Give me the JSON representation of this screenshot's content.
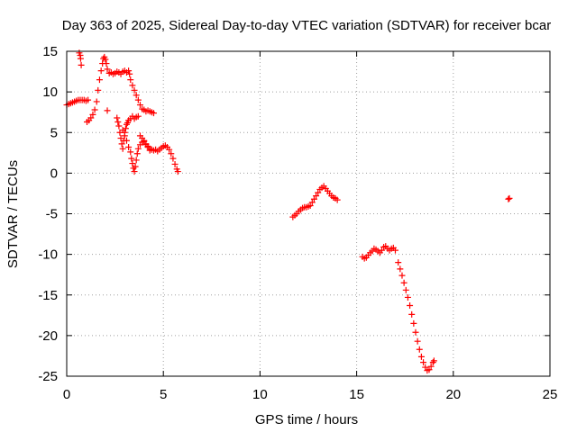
{
  "chart_data": {
    "type": "scatter",
    "title": "Day 363 of 2025, Sidereal Day-to-day VTEC variation (SDTVAR) for receiver bcar",
    "xlabel": "GPS time / hours",
    "ylabel": "SDTVAR / TECUs",
    "xlim": [
      0,
      25
    ],
    "ylim": [
      -25,
      15
    ],
    "x_ticks": [
      0,
      5,
      10,
      15,
      20,
      25
    ],
    "y_ticks": [
      15,
      10,
      5,
      0,
      -5,
      -10,
      -15,
      -20,
      -25
    ],
    "grid": true,
    "marker": "+",
    "color": "#ff0000",
    "series": [
      {
        "name": "SDTVAR",
        "points": [
          [
            0.0,
            8.4
          ],
          [
            0.1,
            8.5
          ],
          [
            0.2,
            8.6
          ],
          [
            0.3,
            8.7
          ],
          [
            0.4,
            8.8
          ],
          [
            0.5,
            8.9
          ],
          [
            0.6,
            9.0
          ],
          [
            0.7,
            9.0
          ],
          [
            0.8,
            9.0
          ],
          [
            0.9,
            9.0
          ],
          [
            1.0,
            8.9
          ],
          [
            1.1,
            9.0
          ],
          [
            0.65,
            14.8
          ],
          [
            0.7,
            14.5
          ],
          [
            0.72,
            14.1
          ],
          [
            0.75,
            13.3
          ],
          [
            1.05,
            6.3
          ],
          [
            1.15,
            6.5
          ],
          [
            1.25,
            6.8
          ],
          [
            1.35,
            7.2
          ],
          [
            1.45,
            7.8
          ],
          [
            1.55,
            8.8
          ],
          [
            1.62,
            10.2
          ],
          [
            1.7,
            11.5
          ],
          [
            1.78,
            12.6
          ],
          [
            1.85,
            13.5
          ],
          [
            1.9,
            14.1
          ],
          [
            1.95,
            14.3
          ],
          [
            2.0,
            14.0
          ],
          [
            2.05,
            13.5
          ],
          [
            2.1,
            12.8
          ],
          [
            2.2,
            12.3
          ],
          [
            2.3,
            12.4
          ],
          [
            2.4,
            12.2
          ],
          [
            2.5,
            12.3
          ],
          [
            2.6,
            12.5
          ],
          [
            2.7,
            12.4
          ],
          [
            2.8,
            12.2
          ],
          [
            2.9,
            12.5
          ],
          [
            3.0,
            12.6
          ],
          [
            3.1,
            12.4
          ],
          [
            3.2,
            12.6
          ],
          [
            3.25,
            12.2
          ],
          [
            3.3,
            11.5
          ],
          [
            3.4,
            10.8
          ],
          [
            3.5,
            10.2
          ],
          [
            3.6,
            9.6
          ],
          [
            3.7,
            9.0
          ],
          [
            3.8,
            8.4
          ],
          [
            3.9,
            7.9
          ],
          [
            4.0,
            7.8
          ],
          [
            4.1,
            7.6
          ],
          [
            4.2,
            7.7
          ],
          [
            4.3,
            7.6
          ],
          [
            4.4,
            7.5
          ],
          [
            4.5,
            7.4
          ],
          [
            2.1,
            7.7
          ],
          [
            2.6,
            6.8
          ],
          [
            2.65,
            6.3
          ],
          [
            2.7,
            5.8
          ],
          [
            2.75,
            5.0
          ],
          [
            2.8,
            4.3
          ],
          [
            2.85,
            3.6
          ],
          [
            2.9,
            3.0
          ],
          [
            2.95,
            4.0
          ],
          [
            3.0,
            5.0
          ],
          [
            3.05,
            5.5
          ],
          [
            3.1,
            6.0
          ],
          [
            3.15,
            6.2
          ],
          [
            3.2,
            6.5
          ],
          [
            3.3,
            6.7
          ],
          [
            3.4,
            7.0
          ],
          [
            3.5,
            6.7
          ],
          [
            3.6,
            6.9
          ],
          [
            3.7,
            7.0
          ],
          [
            2.9,
            5.3
          ],
          [
            3.0,
            4.6
          ],
          [
            3.1,
            4.0
          ],
          [
            3.2,
            3.2
          ],
          [
            3.3,
            2.6
          ],
          [
            3.35,
            1.8
          ],
          [
            3.4,
            1.2
          ],
          [
            3.45,
            0.6
          ],
          [
            3.5,
            0.2
          ],
          [
            3.55,
            0.8
          ],
          [
            3.6,
            1.6
          ],
          [
            3.65,
            2.4
          ],
          [
            3.7,
            3.0
          ],
          [
            3.8,
            3.5
          ],
          [
            3.9,
            3.8
          ],
          [
            4.0,
            4.0
          ],
          [
            4.1,
            3.6
          ],
          [
            4.2,
            3.3
          ],
          [
            4.3,
            3.0
          ],
          [
            4.4,
            2.9
          ],
          [
            4.5,
            2.8
          ],
          [
            4.6,
            2.9
          ],
          [
            4.7,
            2.7
          ],
          [
            4.8,
            2.9
          ],
          [
            4.9,
            3.1
          ],
          [
            5.0,
            3.3
          ],
          [
            5.1,
            3.4
          ],
          [
            5.2,
            3.2
          ],
          [
            5.3,
            2.9
          ],
          [
            5.4,
            2.4
          ],
          [
            5.5,
            1.8
          ],
          [
            5.6,
            1.1
          ],
          [
            5.7,
            0.5
          ],
          [
            5.75,
            0.2
          ],
          [
            3.8,
            4.6
          ],
          [
            3.9,
            4.3
          ],
          [
            4.0,
            3.9
          ],
          [
            4.1,
            3.5
          ],
          [
            4.2,
            3.2
          ],
          [
            4.3,
            2.8
          ],
          [
            11.7,
            -5.4
          ],
          [
            11.8,
            -5.2
          ],
          [
            11.9,
            -5.0
          ],
          [
            12.0,
            -4.7
          ],
          [
            12.1,
            -4.5
          ],
          [
            12.2,
            -4.3
          ],
          [
            12.3,
            -4.2
          ],
          [
            12.4,
            -4.2
          ],
          [
            12.5,
            -4.1
          ],
          [
            12.6,
            -4.0
          ],
          [
            12.7,
            -3.6
          ],
          [
            12.8,
            -3.2
          ],
          [
            12.9,
            -2.8
          ],
          [
            13.0,
            -2.4
          ],
          [
            13.1,
            -2.0
          ],
          [
            13.2,
            -1.8
          ],
          [
            13.3,
            -1.6
          ],
          [
            13.4,
            -1.9
          ],
          [
            13.5,
            -2.2
          ],
          [
            13.6,
            -2.5
          ],
          [
            13.7,
            -2.8
          ],
          [
            13.8,
            -3.0
          ],
          [
            13.9,
            -3.1
          ],
          [
            14.0,
            -3.3
          ],
          [
            15.3,
            -10.3
          ],
          [
            15.4,
            -10.5
          ],
          [
            15.5,
            -10.4
          ],
          [
            15.6,
            -10.1
          ],
          [
            15.7,
            -9.8
          ],
          [
            15.8,
            -9.6
          ],
          [
            15.9,
            -9.3
          ],
          [
            16.0,
            -9.4
          ],
          [
            16.1,
            -9.6
          ],
          [
            16.2,
            -9.8
          ],
          [
            16.3,
            -9.5
          ],
          [
            16.4,
            -9.1
          ],
          [
            16.5,
            -9.0
          ],
          [
            16.6,
            -9.3
          ],
          [
            16.7,
            -9.5
          ],
          [
            16.8,
            -9.3
          ],
          [
            16.9,
            -9.2
          ],
          [
            17.0,
            -9.5
          ],
          [
            17.15,
            -11.0
          ],
          [
            17.25,
            -11.8
          ],
          [
            17.35,
            -12.6
          ],
          [
            17.45,
            -13.5
          ],
          [
            17.55,
            -14.4
          ],
          [
            17.65,
            -15.3
          ],
          [
            17.75,
            -16.3
          ],
          [
            17.85,
            -17.4
          ],
          [
            17.95,
            -18.5
          ],
          [
            18.05,
            -19.6
          ],
          [
            18.15,
            -20.7
          ],
          [
            18.25,
            -21.7
          ],
          [
            18.35,
            -22.6
          ],
          [
            18.45,
            -23.3
          ],
          [
            18.55,
            -23.9
          ],
          [
            18.65,
            -24.3
          ],
          [
            18.75,
            -24.2
          ],
          [
            18.85,
            -23.8
          ],
          [
            18.95,
            -23.3
          ],
          [
            19.0,
            -23.1
          ],
          [
            22.85,
            -3.2
          ],
          [
            22.9,
            -3.1
          ]
        ]
      }
    ]
  }
}
